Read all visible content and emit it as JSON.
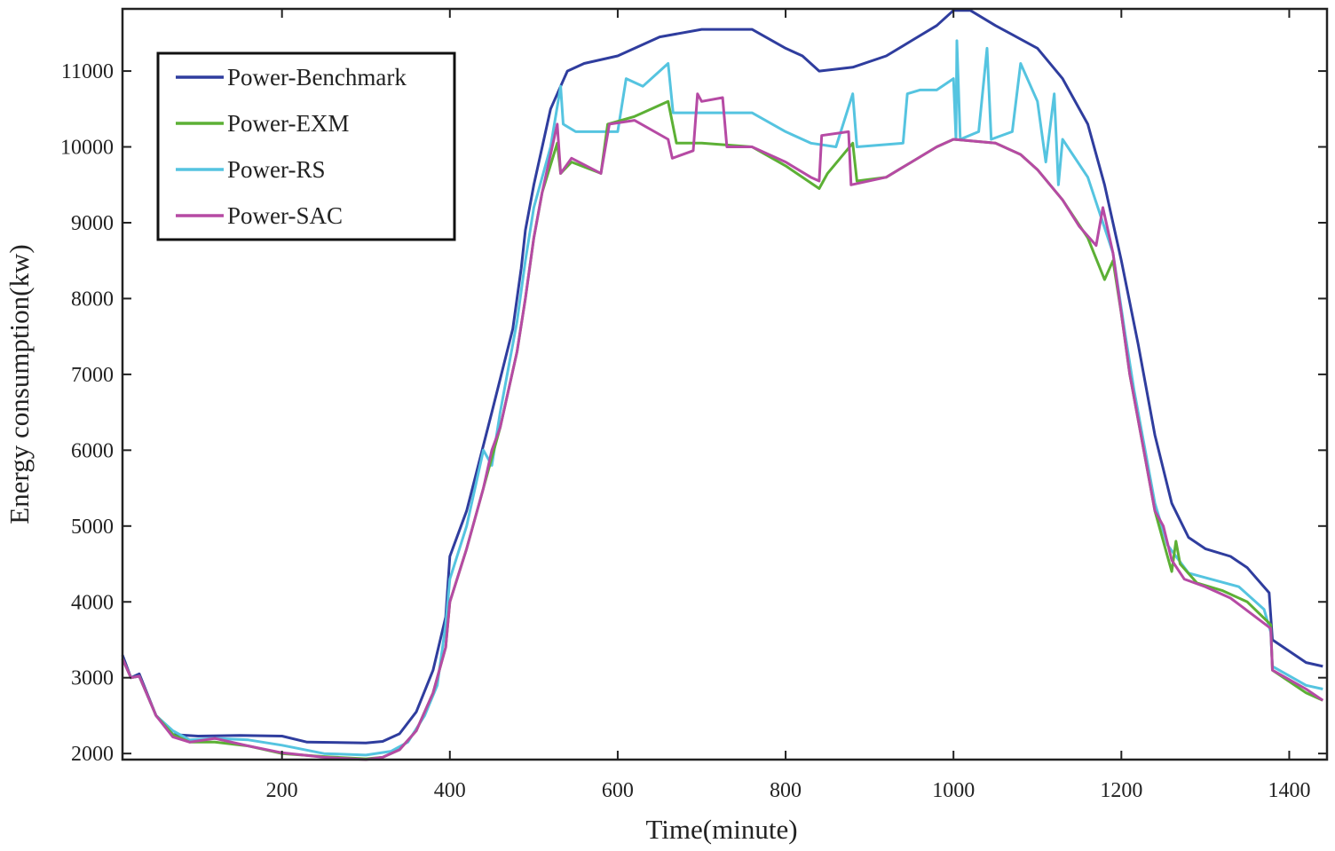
{
  "chart_data": {
    "type": "line",
    "title": "",
    "xlabel": "Time(minute)",
    "ylabel": "Energy consumption(kw)",
    "xlim": [
      10,
      1445
    ],
    "ylim": [
      1920,
      11820
    ],
    "xticks": [
      200,
      400,
      600,
      800,
      1000,
      1200,
      1400
    ],
    "yticks": [
      2000,
      3000,
      4000,
      5000,
      6000,
      7000,
      8000,
      9000,
      10000,
      11000
    ],
    "legend_position": "top-left",
    "series": [
      {
        "name": "Power-Benchmark",
        "color": "#2f3d9e",
        "points": [
          [
            10,
            3300
          ],
          [
            20,
            3000
          ],
          [
            30,
            3050
          ],
          [
            50,
            2500
          ],
          [
            70,
            2250
          ],
          [
            100,
            2230
          ],
          [
            150,
            2240
          ],
          [
            200,
            2230
          ],
          [
            230,
            2150
          ],
          [
            300,
            2140
          ],
          [
            320,
            2160
          ],
          [
            340,
            2260
          ],
          [
            360,
            2550
          ],
          [
            380,
            3100
          ],
          [
            395,
            3800
          ],
          [
            400,
            4600
          ],
          [
            420,
            5200
          ],
          [
            450,
            6500
          ],
          [
            475,
            7600
          ],
          [
            485,
            8400
          ],
          [
            490,
            8900
          ],
          [
            500,
            9500
          ],
          [
            520,
            10500
          ],
          [
            540,
            11000
          ],
          [
            560,
            11100
          ],
          [
            600,
            11200
          ],
          [
            650,
            11450
          ],
          [
            700,
            11550
          ],
          [
            760,
            11550
          ],
          [
            800,
            11300
          ],
          [
            820,
            11200
          ],
          [
            840,
            11000
          ],
          [
            880,
            11050
          ],
          [
            920,
            11200
          ],
          [
            950,
            11400
          ],
          [
            980,
            11600
          ],
          [
            1000,
            11800
          ],
          [
            1020,
            11800
          ],
          [
            1050,
            11600
          ],
          [
            1100,
            11300
          ],
          [
            1130,
            10900
          ],
          [
            1160,
            10300
          ],
          [
            1180,
            9500
          ],
          [
            1200,
            8500
          ],
          [
            1220,
            7400
          ],
          [
            1240,
            6200
          ],
          [
            1260,
            5300
          ],
          [
            1280,
            4850
          ],
          [
            1300,
            4700
          ],
          [
            1330,
            4600
          ],
          [
            1350,
            4450
          ],
          [
            1376,
            4120
          ],
          [
            1380,
            3500
          ],
          [
            1420,
            3200
          ],
          [
            1440,
            3150
          ]
        ]
      },
      {
        "name": "Power-RS",
        "color": "#55c4e0",
        "points": [
          [
            10,
            3250
          ],
          [
            20,
            3000
          ],
          [
            30,
            3020
          ],
          [
            50,
            2500
          ],
          [
            70,
            2300
          ],
          [
            90,
            2180
          ],
          [
            120,
            2200
          ],
          [
            160,
            2180
          ],
          [
            200,
            2110
          ],
          [
            250,
            2000
          ],
          [
            300,
            1980
          ],
          [
            330,
            2030
          ],
          [
            350,
            2150
          ],
          [
            370,
            2500
          ],
          [
            385,
            2900
          ],
          [
            395,
            3700
          ],
          [
            400,
            4300
          ],
          [
            420,
            5000
          ],
          [
            440,
            6000
          ],
          [
            450,
            5800
          ],
          [
            460,
            6500
          ],
          [
            480,
            7700
          ],
          [
            490,
            8500
          ],
          [
            500,
            9200
          ],
          [
            520,
            10000
          ],
          [
            532,
            10800
          ],
          [
            535,
            10300
          ],
          [
            550,
            10200
          ],
          [
            600,
            10200
          ],
          [
            610,
            10900
          ],
          [
            630,
            10800
          ],
          [
            660,
            11100
          ],
          [
            666,
            10450
          ],
          [
            700,
            10450
          ],
          [
            760,
            10450
          ],
          [
            800,
            10200
          ],
          [
            830,
            10050
          ],
          [
            860,
            10000
          ],
          [
            880,
            10700
          ],
          [
            885,
            10000
          ],
          [
            940,
            10050
          ],
          [
            945,
            10700
          ],
          [
            960,
            10750
          ],
          [
            980,
            10750
          ],
          [
            1000,
            10900
          ],
          [
            1003,
            10100
          ],
          [
            1004,
            11400
          ],
          [
            1008,
            10100
          ],
          [
            1030,
            10200
          ],
          [
            1040,
            11300
          ],
          [
            1045,
            10100
          ],
          [
            1070,
            10200
          ],
          [
            1080,
            11100
          ],
          [
            1100,
            10600
          ],
          [
            1110,
            9800
          ],
          [
            1120,
            10700
          ],
          [
            1125,
            9500
          ],
          [
            1130,
            10100
          ],
          [
            1160,
            9600
          ],
          [
            1190,
            8600
          ],
          [
            1205,
            7500
          ],
          [
            1215,
            6800
          ],
          [
            1230,
            5900
          ],
          [
            1240,
            5300
          ],
          [
            1255,
            4750
          ],
          [
            1280,
            4380
          ],
          [
            1300,
            4320
          ],
          [
            1340,
            4200
          ],
          [
            1370,
            3900
          ],
          [
            1378,
            3600
          ],
          [
            1380,
            3150
          ],
          [
            1420,
            2900
          ],
          [
            1440,
            2850
          ]
        ]
      },
      {
        "name": "Power-EXM",
        "color": "#5cb035",
        "points": [
          [
            10,
            3250
          ],
          [
            20,
            3000
          ],
          [
            30,
            3020
          ],
          [
            50,
            2500
          ],
          [
            70,
            2250
          ],
          [
            90,
            2150
          ],
          [
            120,
            2150
          ],
          [
            160,
            2100
          ],
          [
            200,
            2000
          ],
          [
            250,
            1960
          ],
          [
            300,
            1930
          ],
          [
            320,
            1950
          ],
          [
            340,
            2050
          ],
          [
            360,
            2300
          ],
          [
            380,
            2800
          ],
          [
            395,
            3400
          ],
          [
            400,
            4000
          ],
          [
            420,
            4700
          ],
          [
            440,
            5500
          ],
          [
            460,
            6300
          ],
          [
            480,
            7300
          ],
          [
            490,
            8000
          ],
          [
            500,
            8800
          ],
          [
            510,
            9400
          ],
          [
            528,
            10050
          ],
          [
            532,
            9650
          ],
          [
            545,
            9800
          ],
          [
            580,
            9650
          ],
          [
            588,
            10300
          ],
          [
            620,
            10400
          ],
          [
            660,
            10600
          ],
          [
            670,
            10050
          ],
          [
            700,
            10050
          ],
          [
            760,
            10000
          ],
          [
            800,
            9750
          ],
          [
            840,
            9450
          ],
          [
            850,
            9650
          ],
          [
            880,
            10050
          ],
          [
            885,
            9550
          ],
          [
            920,
            9600
          ],
          [
            950,
            9800
          ],
          [
            980,
            10000
          ],
          [
            1000,
            10100
          ],
          [
            1050,
            10050
          ],
          [
            1080,
            9900
          ],
          [
            1100,
            9700
          ],
          [
            1130,
            9300
          ],
          [
            1160,
            8800
          ],
          [
            1180,
            8250
          ],
          [
            1190,
            8500
          ],
          [
            1200,
            7800
          ],
          [
            1210,
            7000
          ],
          [
            1225,
            6100
          ],
          [
            1240,
            5200
          ],
          [
            1255,
            4600
          ],
          [
            1260,
            4400
          ],
          [
            1265,
            4800
          ],
          [
            1270,
            4500
          ],
          [
            1290,
            4250
          ],
          [
            1320,
            4150
          ],
          [
            1350,
            4000
          ],
          [
            1378,
            3700
          ],
          [
            1380,
            3100
          ],
          [
            1420,
            2800
          ],
          [
            1440,
            2700
          ]
        ]
      },
      {
        "name": "Power-SAC",
        "color": "#b64aa4",
        "points": [
          [
            10,
            3250
          ],
          [
            20,
            3000
          ],
          [
            30,
            3020
          ],
          [
            50,
            2500
          ],
          [
            70,
            2220
          ],
          [
            90,
            2150
          ],
          [
            120,
            2200
          ],
          [
            160,
            2100
          ],
          [
            200,
            2010
          ],
          [
            250,
            1950
          ],
          [
            300,
            1920
          ],
          [
            320,
            1950
          ],
          [
            340,
            2050
          ],
          [
            360,
            2300
          ],
          [
            380,
            2800
          ],
          [
            395,
            3400
          ],
          [
            400,
            4000
          ],
          [
            420,
            4700
          ],
          [
            440,
            5500
          ],
          [
            450,
            6000
          ],
          [
            460,
            6300
          ],
          [
            480,
            7300
          ],
          [
            490,
            8000
          ],
          [
            500,
            8800
          ],
          [
            510,
            9400
          ],
          [
            528,
            10300
          ],
          [
            532,
            9650
          ],
          [
            545,
            9850
          ],
          [
            580,
            9650
          ],
          [
            590,
            10300
          ],
          [
            620,
            10350
          ],
          [
            660,
            10100
          ],
          [
            665,
            9850
          ],
          [
            690,
            9950
          ],
          [
            695,
            10700
          ],
          [
            700,
            10600
          ],
          [
            725,
            10650
          ],
          [
            730,
            10000
          ],
          [
            760,
            10000
          ],
          [
            800,
            9800
          ],
          [
            830,
            9600
          ],
          [
            840,
            9550
          ],
          [
            843,
            10150
          ],
          [
            875,
            10200
          ],
          [
            878,
            9500
          ],
          [
            920,
            9600
          ],
          [
            950,
            9800
          ],
          [
            980,
            10000
          ],
          [
            1000,
            10100
          ],
          [
            1050,
            10050
          ],
          [
            1080,
            9900
          ],
          [
            1100,
            9700
          ],
          [
            1130,
            9300
          ],
          [
            1150,
            8950
          ],
          [
            1170,
            8700
          ],
          [
            1178,
            9200
          ],
          [
            1190,
            8600
          ],
          [
            1200,
            7800
          ],
          [
            1210,
            7000
          ],
          [
            1225,
            6100
          ],
          [
            1240,
            5200
          ],
          [
            1250,
            5000
          ],
          [
            1260,
            4550
          ],
          [
            1275,
            4300
          ],
          [
            1300,
            4200
          ],
          [
            1330,
            4050
          ],
          [
            1360,
            3800
          ],
          [
            1378,
            3650
          ],
          [
            1380,
            3100
          ],
          [
            1420,
            2850
          ],
          [
            1440,
            2700
          ]
        ]
      }
    ]
  }
}
